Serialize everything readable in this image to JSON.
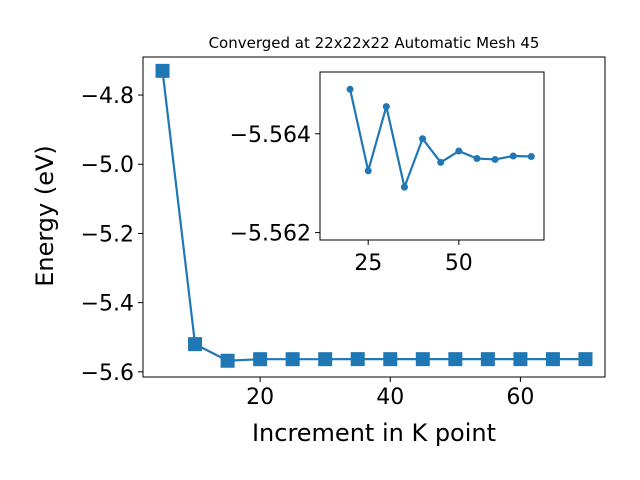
{
  "chart_data": [
    {
      "type": "line",
      "title": "Converged at 22x22x22 Automatic Mesh 45",
      "xlabel": "Increment in K point",
      "ylabel": "Energy (eV)",
      "xlim": [
        2,
        73
      ],
      "ylim": [
        -5.615,
        -4.69
      ],
      "xticks": [
        20,
        40,
        60
      ],
      "yticks": [
        -5.6,
        -5.4,
        -5.2,
        -5.0,
        -4.8
      ],
      "ytick_labels": [
        "−5.6",
        "−5.4",
        "−5.2",
        "−5.0",
        "−4.8"
      ],
      "marker": "square",
      "color": "#1f77b4",
      "series": [
        {
          "x": [
            5,
            10,
            15,
            20,
            25,
            30,
            35,
            40,
            45,
            50,
            55,
            60,
            65,
            70
          ],
          "y": [
            -4.73,
            -5.52,
            -5.568,
            -5.5635,
            -5.5635,
            -5.5635,
            -5.5633,
            -5.5634,
            -5.5634,
            -5.5634,
            -5.5634,
            -5.5634,
            -5.5634,
            -5.5634
          ]
        }
      ]
    },
    {
      "type": "line",
      "title": "",
      "xlabel": "",
      "ylabel": "",
      "xlim": [
        11.7,
        73.5
      ],
      "ylim": [
        -5.56185,
        -5.56525
      ],
      "xticks": [
        25,
        50
      ],
      "yticks": [
        -5.562,
        -5.564
      ],
      "ytick_labels": [
        "−5.562",
        "−5.564"
      ],
      "marker": "circle",
      "color": "#1f77b4",
      "series": [
        {
          "x": [
            20,
            25,
            30,
            35,
            40,
            45,
            50,
            55,
            60,
            65,
            70
          ],
          "y": [
            -5.5649,
            -5.56325,
            -5.56455,
            -5.56292,
            -5.5639,
            -5.56342,
            -5.56365,
            -5.5635,
            -5.56348,
            -5.56355,
            -5.56354
          ]
        }
      ]
    }
  ]
}
